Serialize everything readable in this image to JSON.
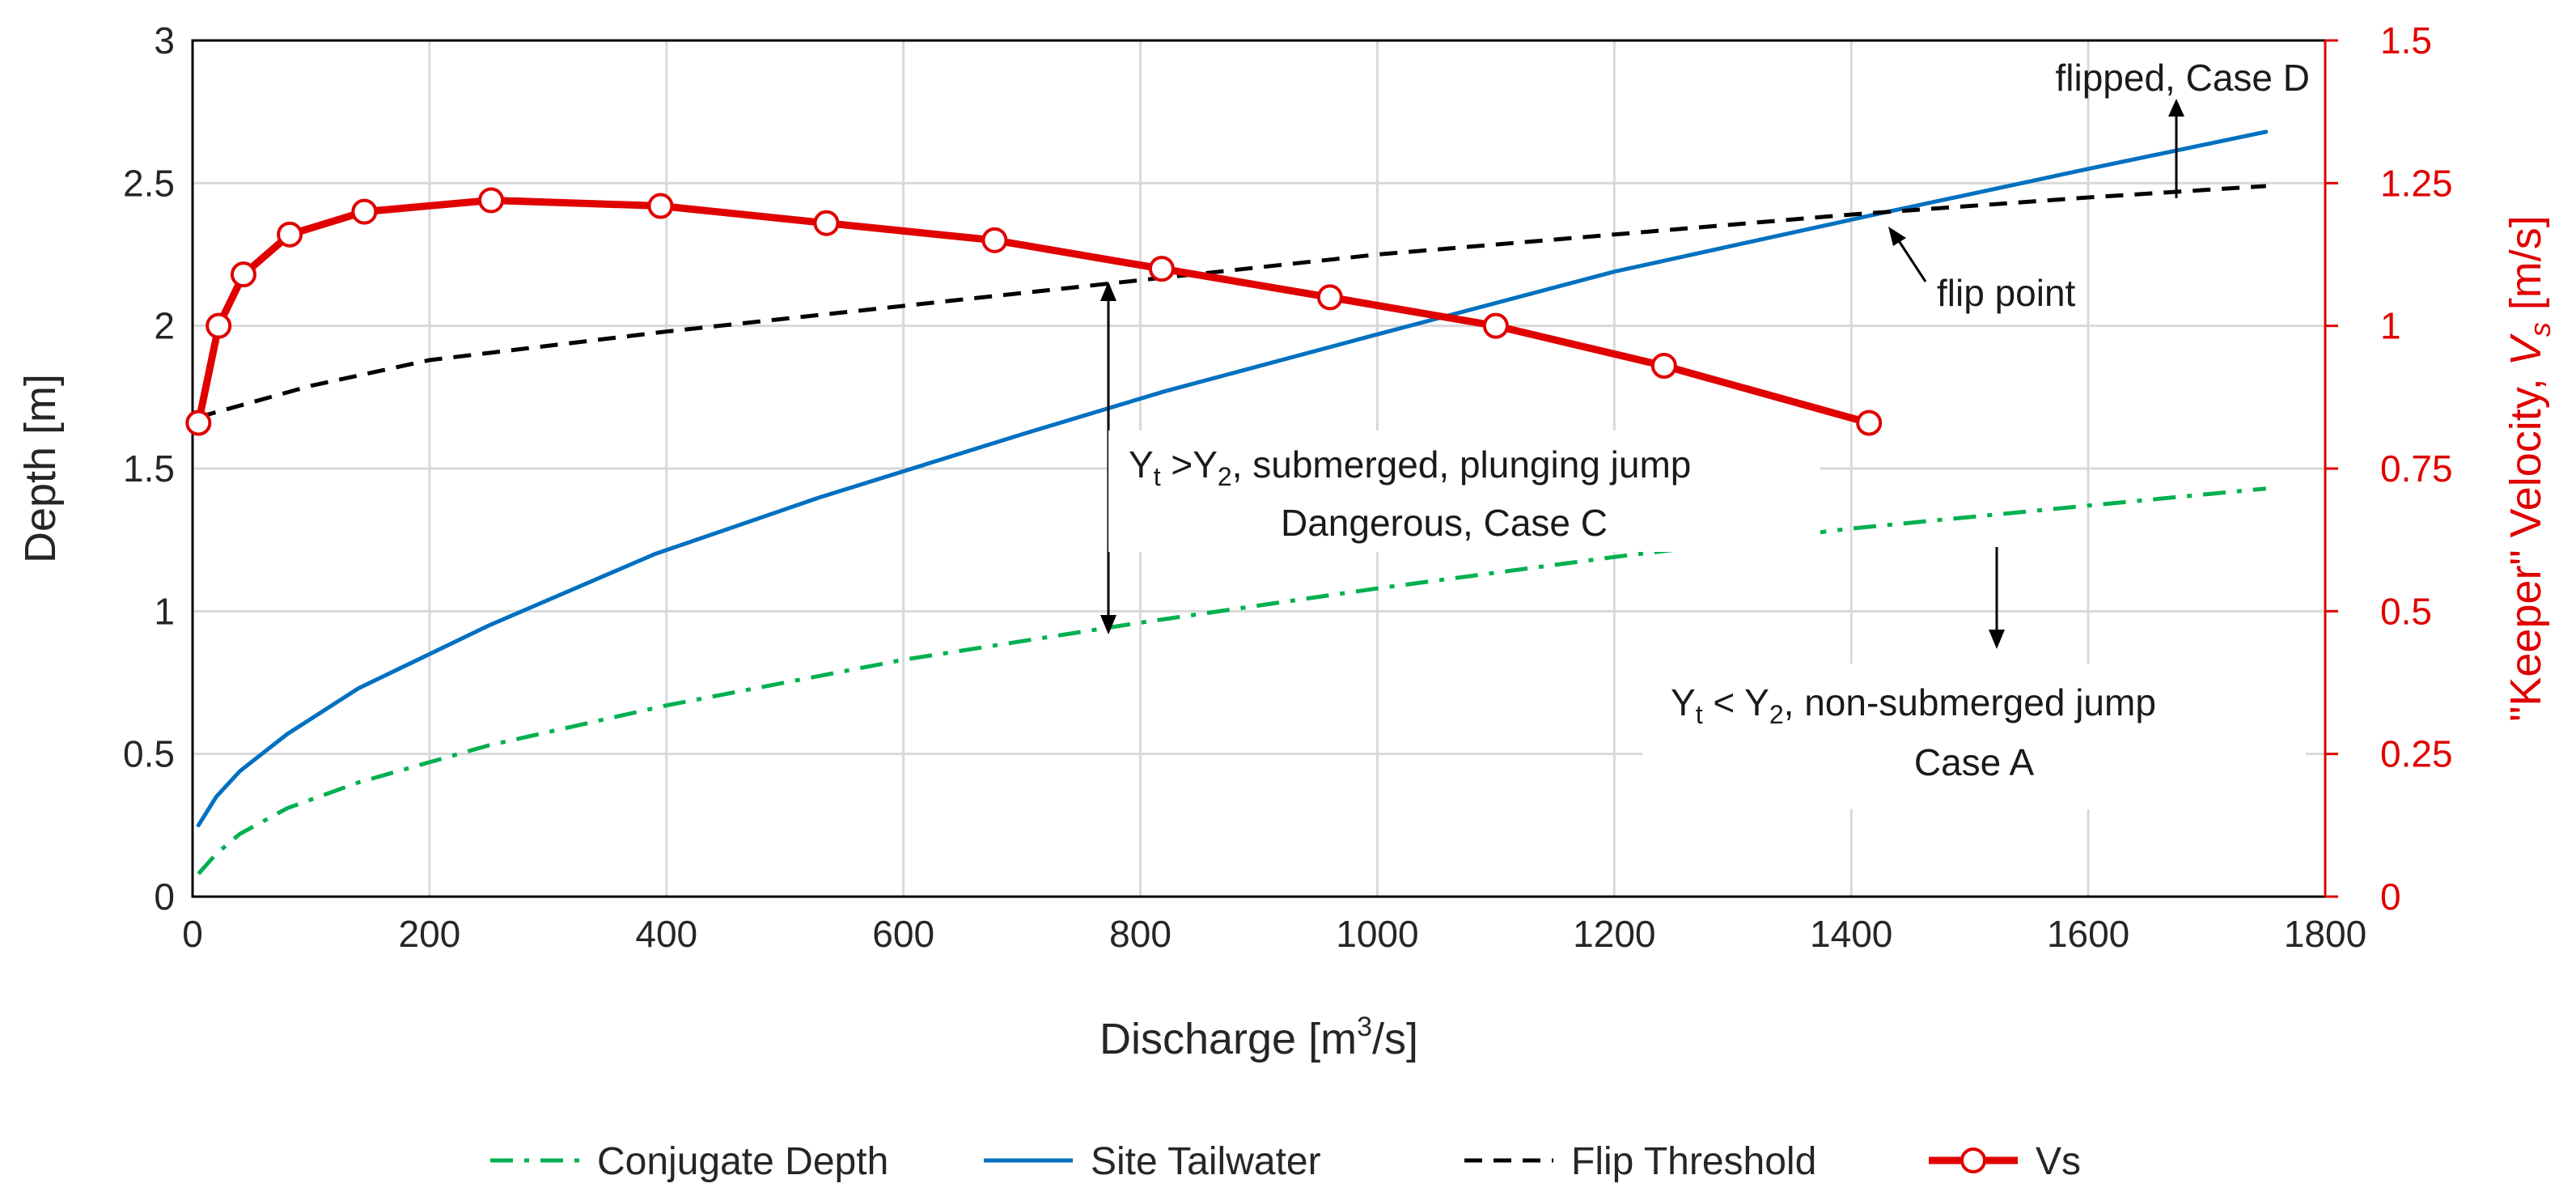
{
  "chart_data": {
    "type": "line",
    "x_axis": {
      "label_main": "Discharge [m",
      "label_sup": "3",
      "label_end": "/s]",
      "range": [
        0,
        1800
      ],
      "ticks": [
        "0",
        "200",
        "400",
        "600",
        "800",
        "1000",
        "1200",
        "1400",
        "1600",
        "1800"
      ]
    },
    "y_axis_left": {
      "label": "Depth [m]",
      "range": [
        0,
        3
      ],
      "ticks": [
        "0",
        "0.5",
        "1",
        "1.5",
        "2",
        "2.5",
        "3"
      ]
    },
    "y_axis_right": {
      "label_main": "\"Keeper\" Velocity, ",
      "label_var": "V",
      "label_sub": "s",
      "label_unit": " [m/s]",
      "range": [
        0,
        1.5
      ],
      "ticks": [
        "0",
        "0.25",
        "0.5",
        "0.75",
        "1",
        "1.25",
        "1.5"
      ],
      "color": "#e00000"
    },
    "grid": true,
    "legend_position": "bottom",
    "series": [
      {
        "name": "Conjugate Depth",
        "axis": "left",
        "color": "#00b050",
        "style": "dash-dot",
        "x": [
          5,
          20,
          40,
          80,
          140,
          250,
          400,
          600,
          800,
          1000,
          1200,
          1400,
          1600,
          1750
        ],
        "y": [
          0.08,
          0.15,
          0.22,
          0.31,
          0.4,
          0.53,
          0.67,
          0.83,
          0.96,
          1.08,
          1.19,
          1.29,
          1.37,
          1.43
        ]
      },
      {
        "name": "Site Tailwater",
        "axis": "left",
        "color": "#0070c0",
        "style": "solid",
        "x": [
          5,
          20,
          40,
          80,
          140,
          250,
          390,
          530,
          700,
          820,
          1000,
          1200,
          1420,
          1600,
          1750
        ],
        "y": [
          0.25,
          0.35,
          0.44,
          0.57,
          0.73,
          0.95,
          1.2,
          1.4,
          1.62,
          1.77,
          1.97,
          2.19,
          2.39,
          2.55,
          2.68
        ]
      },
      {
        "name": "Flip Threshold",
        "axis": "left",
        "color": "#000000",
        "style": "dashed",
        "x": [
          5,
          100,
          200,
          400,
          600,
          800,
          1000,
          1200,
          1400,
          1600,
          1750
        ],
        "y": [
          1.68,
          1.79,
          1.88,
          1.98,
          2.07,
          2.16,
          2.25,
          2.32,
          2.39,
          2.45,
          2.49
        ]
      },
      {
        "name": "Vs",
        "axis": "right",
        "color": "#e00000",
        "style": "solid-markers",
        "x": [
          5,
          22,
          43,
          82,
          145,
          252,
          395,
          535,
          677,
          818,
          960,
          1100,
          1242,
          1415
        ],
        "y": [
          0.83,
          1.0,
          1.09,
          1.16,
          1.2,
          1.22,
          1.21,
          1.18,
          1.15,
          1.1,
          1.05,
          1.0,
          0.93,
          0.83
        ]
      }
    ],
    "annotations": {
      "flipped": "flipped, Case D",
      "flip_point": "flip point",
      "submerged_y_t": "Y",
      "submerged_t": "t",
      "submerged_gt": " >Y",
      "submerged_2": "2",
      "submerged_rest": ", submerged, plunging jump",
      "submerged_line2": "Dangerous, Case C",
      "nonsub_y_t": "Y",
      "nonsub_t": "t",
      "nonsub_lt": " < Y",
      "nonsub_2": "2",
      "nonsub_rest": ", non-submerged jump",
      "nonsub_line2": "Case A"
    }
  }
}
